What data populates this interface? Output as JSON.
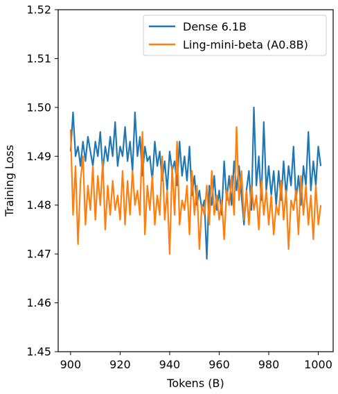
{
  "chart_data": {
    "type": "line",
    "xlabel": "Tokens (B)",
    "ylabel": "Training Loss",
    "xlim": [
      895,
      1006
    ],
    "ylim": [
      1.45,
      1.52
    ],
    "xticks": [
      900,
      920,
      940,
      960,
      980,
      1000
    ],
    "xtick_labels": [
      "900",
      "920",
      "940",
      "960",
      "980",
      "1000"
    ],
    "yticks": [
      1.45,
      1.46,
      1.47,
      1.48,
      1.49,
      1.5,
      1.51,
      1.52
    ],
    "ytick_labels": [
      "1.45",
      "1.46",
      "1.47",
      "1.48",
      "1.49",
      "1.50",
      "1.51",
      "1.52"
    ],
    "grid": false,
    "legend_position": "top-right",
    "series": [
      {
        "name": "Dense 6.1B",
        "color": "#1f77b4",
        "x": [
          900,
          901,
          902,
          903,
          904,
          905,
          906,
          907,
          908,
          909,
          910,
          911,
          912,
          913,
          914,
          915,
          916,
          917,
          918,
          919,
          920,
          921,
          922,
          923,
          924,
          925,
          926,
          927,
          928,
          929,
          930,
          931,
          932,
          933,
          934,
          935,
          936,
          937,
          938,
          939,
          940,
          941,
          942,
          943,
          944,
          945,
          946,
          947,
          948,
          949,
          950,
          951,
          952,
          953,
          954,
          955,
          956,
          957,
          958,
          959,
          960,
          961,
          962,
          963,
          964,
          965,
          966,
          967,
          968,
          969,
          970,
          971,
          972,
          973,
          974,
          975,
          976,
          977,
          978,
          979,
          980,
          981,
          982,
          983,
          984,
          985,
          986,
          987,
          988,
          989,
          990,
          991,
          992,
          993,
          994,
          995,
          996,
          997,
          998,
          999,
          1000,
          1001
        ],
        "values": [
          1.491,
          1.499,
          1.49,
          1.492,
          1.488,
          1.493,
          1.489,
          1.494,
          1.491,
          1.488,
          1.493,
          1.49,
          1.495,
          1.487,
          1.492,
          1.489,
          1.494,
          1.49,
          1.497,
          1.488,
          1.492,
          1.49,
          1.496,
          1.489,
          1.493,
          1.487,
          1.499,
          1.49,
          1.494,
          1.486,
          1.492,
          1.489,
          1.49,
          1.485,
          1.493,
          1.488,
          1.491,
          1.485,
          1.489,
          1.483,
          1.491,
          1.487,
          1.489,
          1.484,
          1.493,
          1.486,
          1.49,
          1.485,
          1.492,
          1.482,
          1.486,
          1.48,
          1.483,
          1.479,
          1.481,
          1.469,
          1.484,
          1.48,
          1.486,
          1.479,
          1.483,
          1.478,
          1.489,
          1.481,
          1.486,
          1.48,
          1.489,
          1.483,
          1.488,
          1.482,
          1.476,
          1.483,
          1.487,
          1.479,
          1.5,
          1.484,
          1.49,
          1.481,
          1.497,
          1.483,
          1.488,
          1.482,
          1.487,
          1.48,
          1.487,
          1.481,
          1.489,
          1.482,
          1.488,
          1.484,
          1.492,
          1.481,
          1.486,
          1.48,
          1.488,
          1.484,
          1.495,
          1.483,
          1.489,
          1.484,
          1.492,
          1.488
        ]
      },
      {
        "name": "Ling-mini-beta (A0.8B)",
        "color": "#ff7f0e",
        "x": [
          900,
          901,
          902,
          903,
          904,
          905,
          906,
          907,
          908,
          909,
          910,
          911,
          912,
          913,
          914,
          915,
          916,
          917,
          918,
          919,
          920,
          921,
          922,
          923,
          924,
          925,
          926,
          927,
          928,
          929,
          930,
          931,
          932,
          933,
          934,
          935,
          936,
          937,
          938,
          939,
          940,
          941,
          942,
          943,
          944,
          945,
          946,
          947,
          948,
          949,
          950,
          951,
          952,
          953,
          954,
          955,
          956,
          957,
          958,
          959,
          960,
          961,
          962,
          963,
          964,
          965,
          966,
          967,
          968,
          969,
          970,
          971,
          972,
          973,
          974,
          975,
          976,
          977,
          978,
          979,
          980,
          981,
          982,
          983,
          984,
          985,
          986,
          987,
          988,
          989,
          990,
          991,
          992,
          993,
          994,
          995,
          996,
          997,
          998,
          999,
          1000,
          1001
        ],
        "values": [
          1.4955,
          1.478,
          1.488,
          1.472,
          1.485,
          1.49,
          1.476,
          1.484,
          1.479,
          1.488,
          1.477,
          1.486,
          1.48,
          1.489,
          1.475,
          1.484,
          1.478,
          1.485,
          1.479,
          1.482,
          1.477,
          1.487,
          1.476,
          1.485,
          1.478,
          1.487,
          1.48,
          1.483,
          1.478,
          1.495,
          1.474,
          1.484,
          1.479,
          1.486,
          1.476,
          1.482,
          1.478,
          1.49,
          1.477,
          1.483,
          1.47,
          1.488,
          1.478,
          1.493,
          1.476,
          1.481,
          1.479,
          1.484,
          1.474,
          1.487,
          1.478,
          1.484,
          1.471,
          1.48,
          1.478,
          1.484,
          1.476,
          1.487,
          1.478,
          1.482,
          1.477,
          1.481,
          1.473,
          1.483,
          1.48,
          1.486,
          1.478,
          1.496,
          1.481,
          1.487,
          1.477,
          1.483,
          1.476,
          1.484,
          1.479,
          1.482,
          1.475,
          1.485,
          1.478,
          1.483,
          1.476,
          1.482,
          1.474,
          1.48,
          1.478,
          1.485,
          1.477,
          1.483,
          1.471,
          1.481,
          1.479,
          1.483,
          1.474,
          1.486,
          1.478,
          1.484,
          1.476,
          1.482,
          1.473,
          1.484,
          1.476,
          1.48
        ]
      }
    ]
  }
}
